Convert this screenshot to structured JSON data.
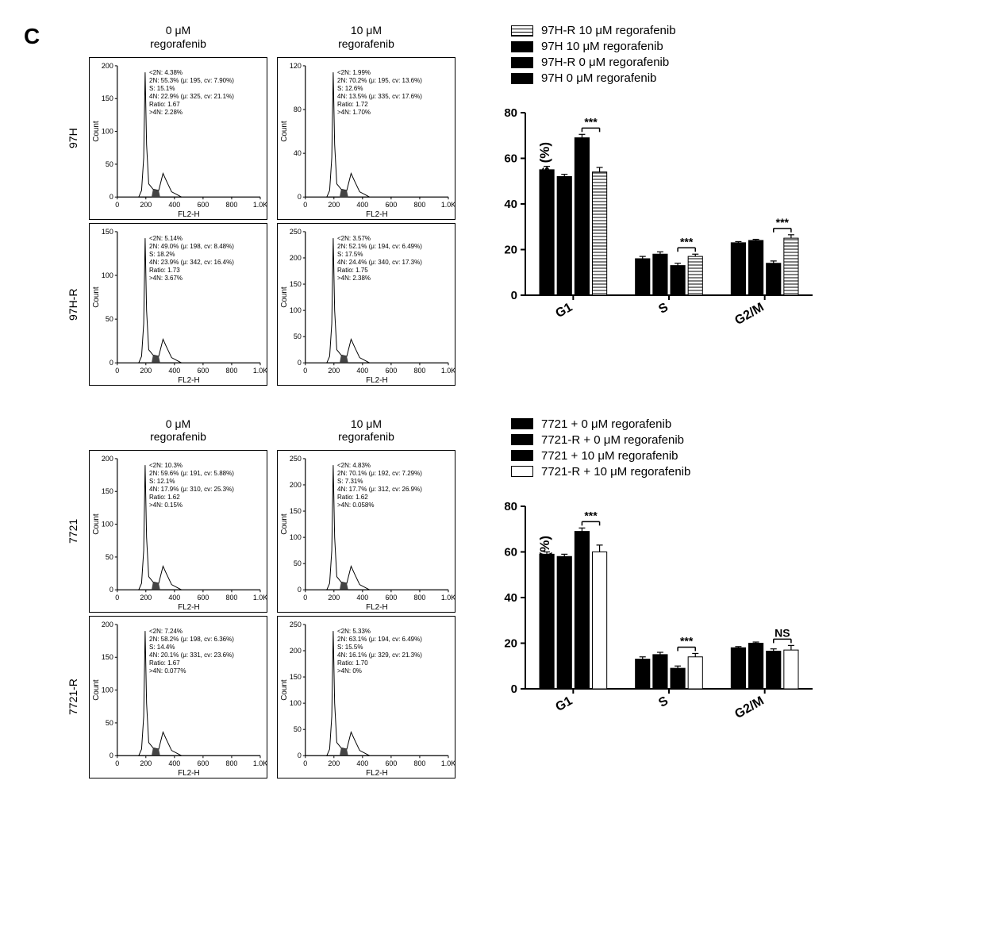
{
  "panel_label": "C",
  "shared": {
    "flow_xlabel": "FL2-H",
    "flow_ylabel": "Count",
    "flow_xticks": [
      "0",
      "200",
      "400",
      "600",
      "800",
      "1.0K"
    ],
    "bar_yaxis_title": "Percentage of cells (%)",
    "bar_categories": [
      "G1",
      "S",
      "G2/M"
    ],
    "bar_ylim": [
      0,
      80
    ],
    "bar_ytick_step": 20,
    "sig_star": "***",
    "sig_ns": "NS"
  },
  "colors": {
    "solid": "#000000",
    "white": "#ffffff",
    "outline": "#000000",
    "axis": "#000000"
  },
  "top": {
    "col_headers": [
      "0 μM\nregorafenib",
      "10 μM\nregorafenib"
    ],
    "row_labels": [
      "97H",
      "97H-R"
    ],
    "plots": [
      {
        "ymax": 200,
        "yticks": [
          0,
          50,
          100,
          150,
          200
        ],
        "stats": [
          "<2N: 4.38%",
          "2N: 55.3% (μ: 195, cv: 7.90%)",
          "S: 15.1%",
          "4N: 22.9% (μ: 325, cv: 21.1%)",
          "Ratio: 1.67",
          ">4N: 2.28%"
        ]
      },
      {
        "ymax": 120,
        "yticks": [
          0,
          40,
          80,
          120
        ],
        "stats": [
          "<2N: 1.99%",
          "2N: 70.2% (μ: 195, cv: 13.6%)",
          "S: 12.6%",
          "4N: 13.5% (μ: 335, cv: 17.6%)",
          "Ratio: 1.72",
          ">4N: 1.70%"
        ]
      },
      {
        "ymax": 150,
        "yticks": [
          0,
          50,
          100,
          150
        ],
        "stats": [
          "<2N: 5.14%",
          "2N: 49.0% (μ: 198, cv: 8.48%)",
          "S: 18.2%",
          "4N: 23.9% (μ: 342, cv: 16.4%)",
          "Ratio: 1.73",
          ">4N: 3.67%"
        ]
      },
      {
        "ymax": 250,
        "yticks": [
          0,
          50,
          100,
          150,
          200,
          250
        ],
        "stats": [
          "<2N: 3.57%",
          "2N: 52.1% (μ: 194, cv: 6.49%)",
          "S: 17.5%",
          "4N: 24.4% (μ: 340, cv: 17.3%)",
          "Ratio: 1.75",
          ">4N: 2.38%"
        ]
      }
    ],
    "legend": [
      {
        "swatch": "hatch",
        "label": "97H-R 10 μM regorafenib"
      },
      {
        "swatch": "solid",
        "label": "97H 10 μM regorafenib"
      },
      {
        "swatch": "solid",
        "label": "97H-R 0 μM regorafenib"
      },
      {
        "swatch": "solid",
        "label": "97H 0 μM regorafenib"
      }
    ],
    "bar_series": [
      {
        "fill": "solid",
        "values": [
          55,
          16,
          23
        ]
      },
      {
        "fill": "solid",
        "values": [
          52,
          18,
          24
        ]
      },
      {
        "fill": "solid",
        "values": [
          69,
          13,
          14
        ]
      },
      {
        "fill": "hatch",
        "values": [
          54,
          17,
          25
        ]
      }
    ],
    "bar_errors": [
      [
        1.5,
        1,
        0.5
      ],
      [
        1,
        1,
        0.5
      ],
      [
        1.5,
        1,
        1
      ],
      [
        2,
        1,
        1.5
      ]
    ],
    "sig_labels": [
      "***",
      "***",
      "***"
    ]
  },
  "bottom": {
    "col_headers": [
      "0 μM\nregorafenib",
      "10 μM\nregorafenib"
    ],
    "row_labels": [
      "7721",
      "7721-R"
    ],
    "plots": [
      {
        "ymax": 200,
        "yticks": [
          0,
          50,
          100,
          150,
          200
        ],
        "stats": [
          "<2N: 10.3%",
          "2N: 59.6% (μ: 191, cv: 5.88%)",
          "S: 12.1%",
          "4N: 17.9% (μ: 310, cv: 25.3%)",
          "Ratio: 1.62",
          ">4N: 0.15%"
        ]
      },
      {
        "ymax": 250,
        "yticks": [
          0,
          50,
          100,
          150,
          200,
          250
        ],
        "stats": [
          "<2N: 4.83%",
          "2N: 70.1% (μ: 192, cv: 7.29%)",
          "S: 7.31%",
          "4N: 17.7% (μ: 312, cv: 26.9%)",
          "Ratio: 1.62",
          ">4N: 0.058%"
        ]
      },
      {
        "ymax": 200,
        "yticks": [
          0,
          50,
          100,
          150,
          200
        ],
        "stats": [
          "<2N: 7.24%",
          "2N: 58.2% (μ: 198, cv: 6.36%)",
          "S: 14.4%",
          "4N: 20.1% (μ: 331, cv: 23.6%)",
          "Ratio: 1.67",
          ">4N: 0.077%"
        ]
      },
      {
        "ymax": 250,
        "yticks": [
          0,
          50,
          100,
          150,
          200,
          250
        ],
        "stats": [
          "<2N: 5.33%",
          "2N: 63.1% (μ: 194, cv: 6.49%)",
          "S: 15.5%",
          "4N: 16.1% (μ: 329, cv: 21.3%)",
          "Ratio: 1.70",
          ">4N: 0%"
        ]
      }
    ],
    "legend": [
      {
        "swatch": "solid",
        "label": "7721 + 0 μM regorafenib"
      },
      {
        "swatch": "solid",
        "label": "7721-R + 0 μM regorafenib"
      },
      {
        "swatch": "solid",
        "label": "7721 + 10 μM regorafenib"
      },
      {
        "swatch": "white",
        "label": "7721-R + 10 μM regorafenib"
      }
    ],
    "bar_series": [
      {
        "fill": "solid",
        "values": [
          59,
          13,
          18
        ]
      },
      {
        "fill": "solid",
        "values": [
          58,
          15,
          20
        ]
      },
      {
        "fill": "solid",
        "values": [
          69,
          9,
          16.5
        ]
      },
      {
        "fill": "white",
        "values": [
          60,
          14,
          17
        ]
      }
    ],
    "bar_errors": [
      [
        1,
        1,
        0.5
      ],
      [
        1,
        1,
        0.5
      ],
      [
        1.5,
        1,
        1
      ],
      [
        3,
        1.5,
        2
      ]
    ],
    "sig_labels": [
      "***",
      "***",
      "NS"
    ]
  }
}
